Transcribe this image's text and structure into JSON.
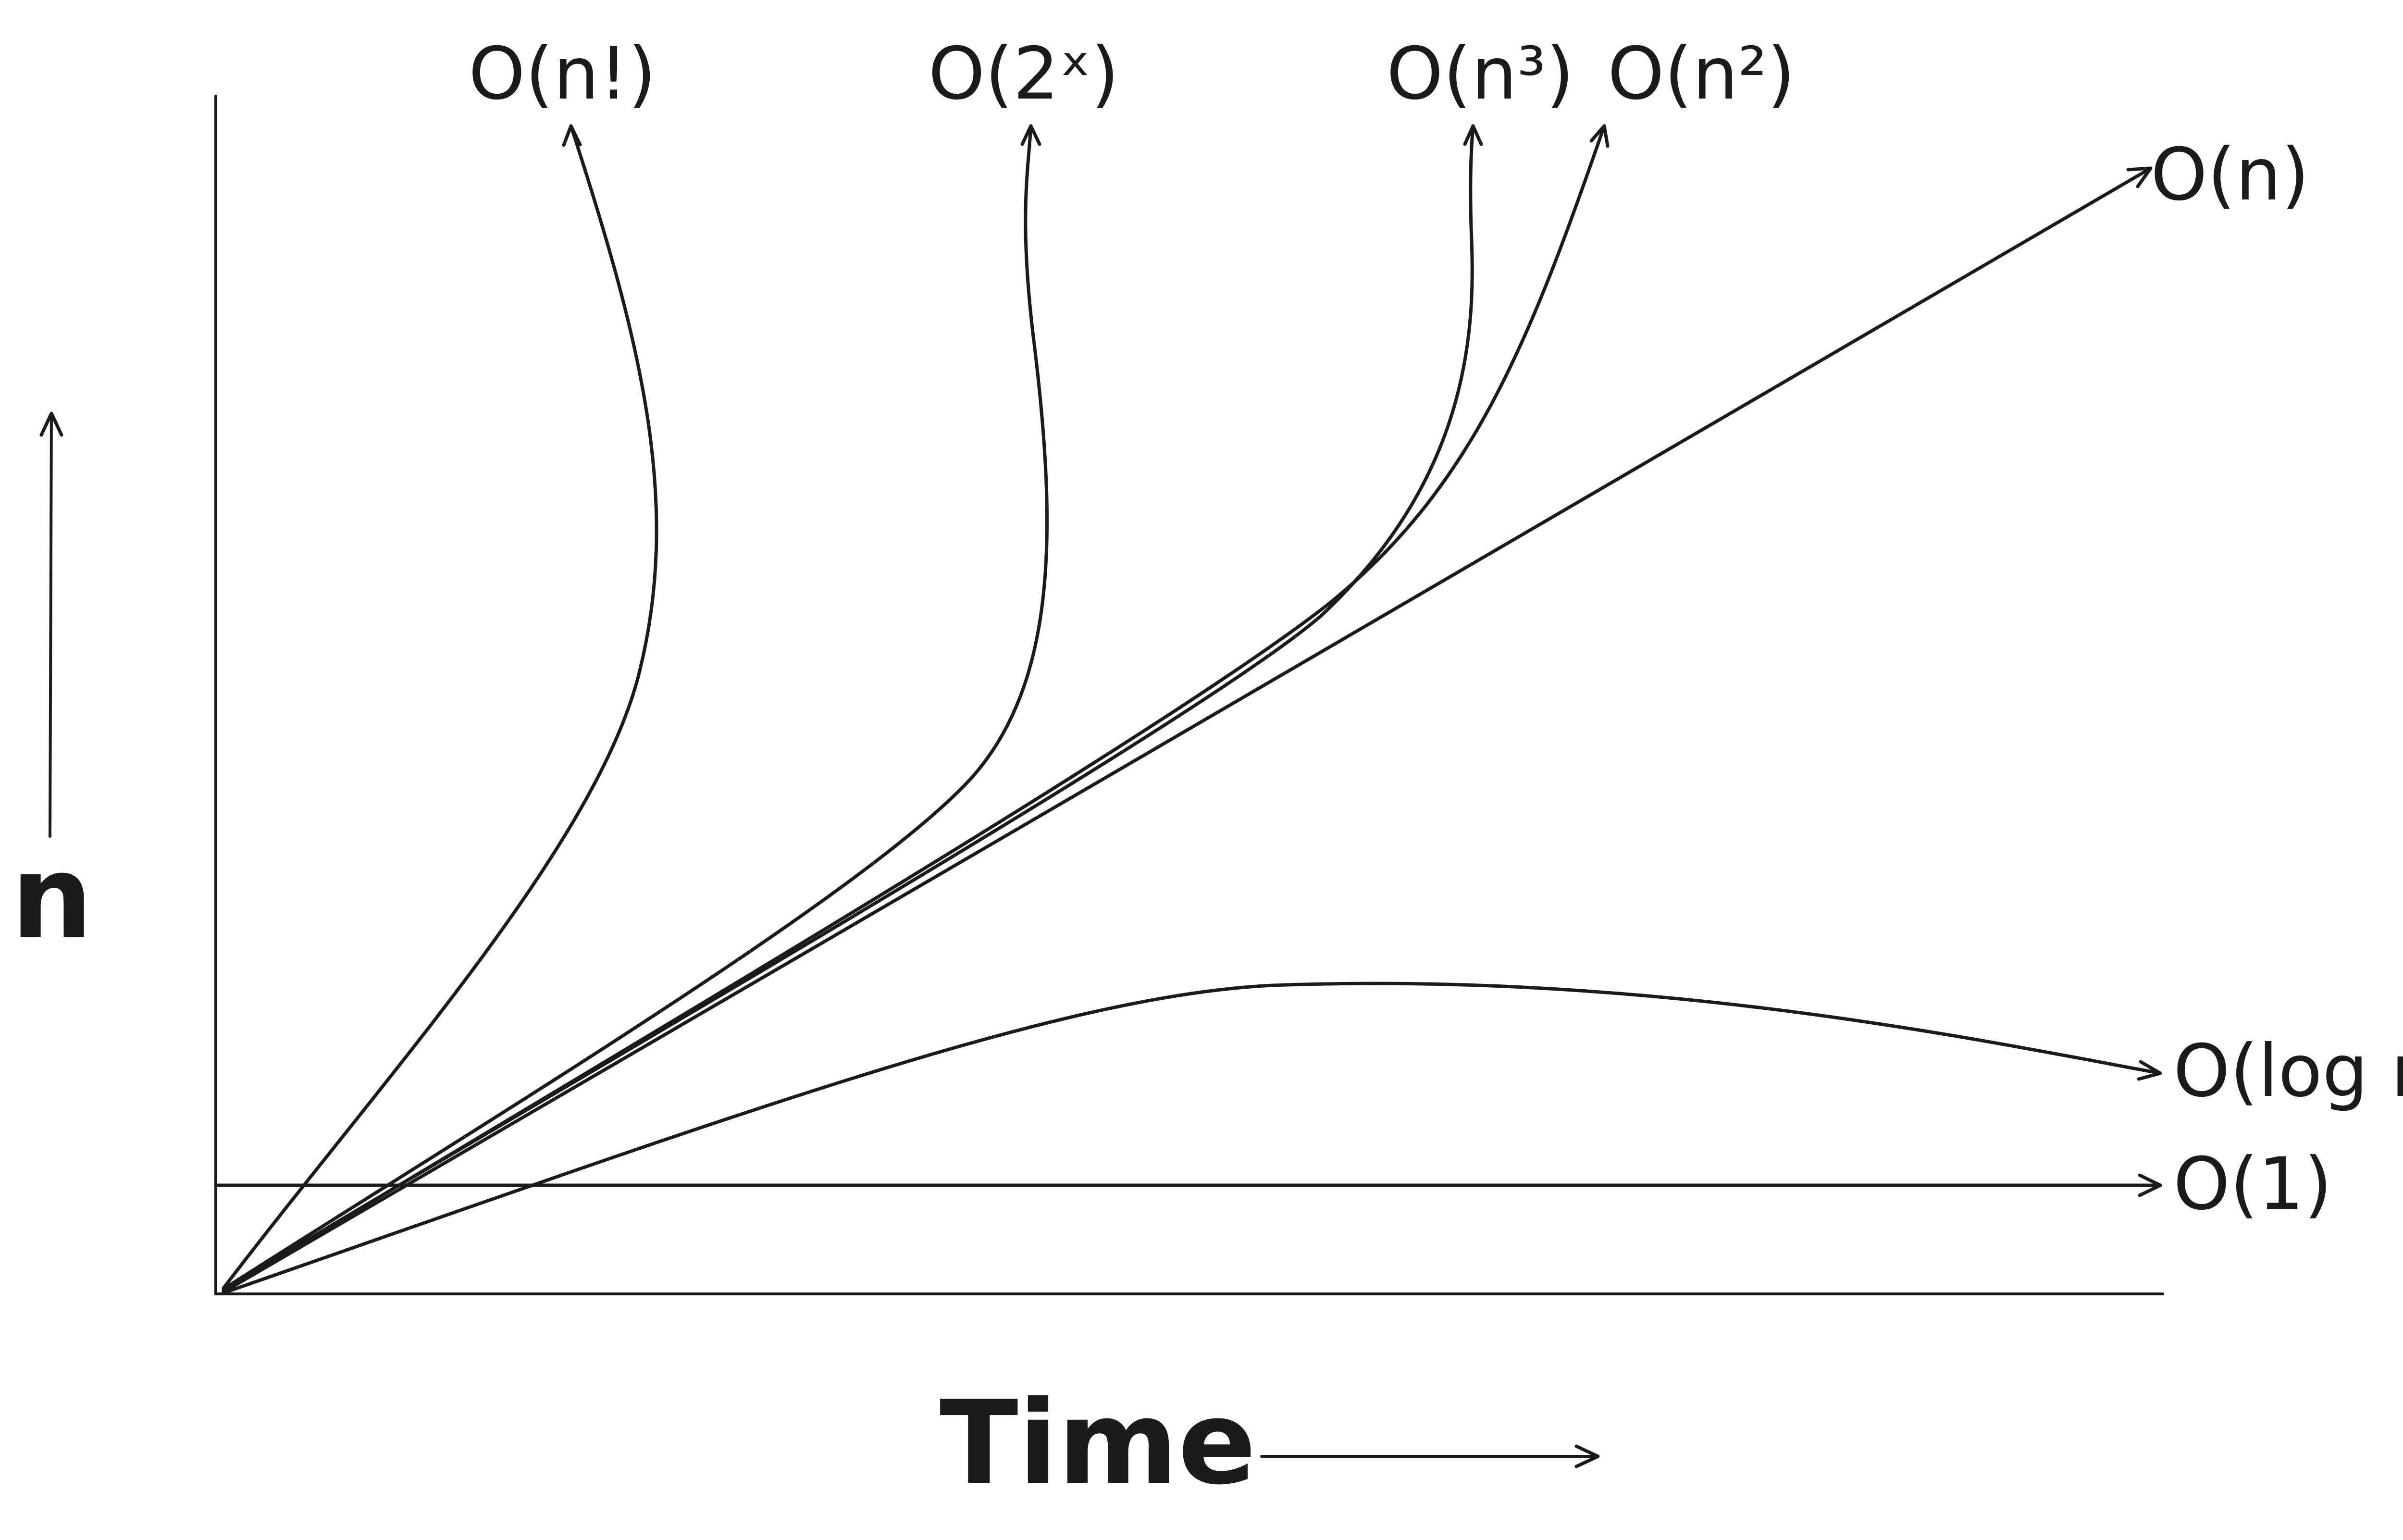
{
  "axes": {
    "y_label": "n",
    "x_label": "Time"
  },
  "curves": [
    {
      "id": "factorial",
      "label": "O(n!)"
    },
    {
      "id": "exponential",
      "label": "O(2ˣ)"
    },
    {
      "id": "cubic",
      "label": "O(n³)"
    },
    {
      "id": "quadratic",
      "label": "O(n²)"
    },
    {
      "id": "linear",
      "label": "O(n)"
    },
    {
      "id": "logarithmic",
      "label": "O(log n)"
    },
    {
      "id": "constant",
      "label": "O(1)"
    }
  ],
  "colors": {
    "ink": "#1b1b1b",
    "background": "#ffffff"
  }
}
